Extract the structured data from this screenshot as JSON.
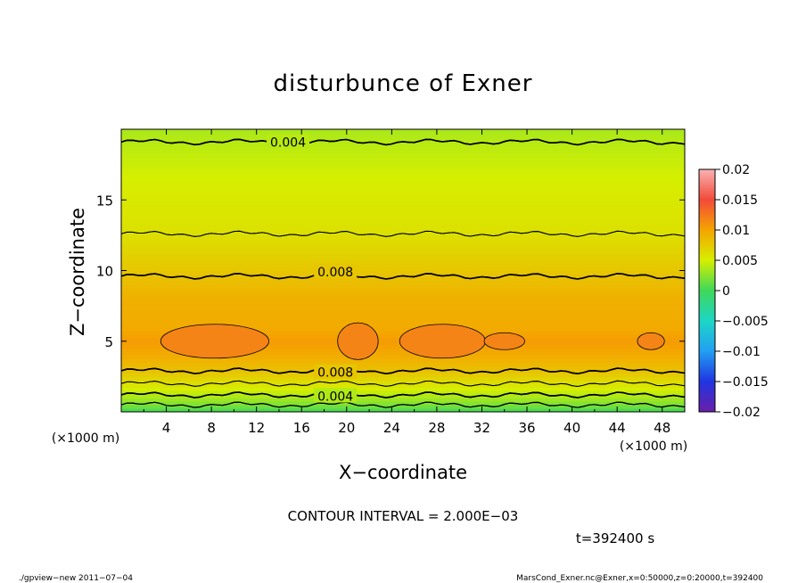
{
  "chart_data": {
    "type": "contour",
    "title": "disturbunce of Exner",
    "xlabel": "X−coordinate",
    "ylabel": "Z−coordinate",
    "x_unit": "(×1000 m)",
    "y_unit": "(×1000 m)",
    "xlim": [
      0,
      50
    ],
    "ylim": [
      0,
      20
    ],
    "x_ticks": [
      4,
      8,
      12,
      16,
      20,
      24,
      28,
      32,
      36,
      40,
      44,
      48
    ],
    "y_ticks": [
      5,
      10,
      15
    ],
    "contour_interval_text": "CONTOUR INTERVAL = 2.000E−03",
    "time_text": "t=392400 s",
    "footer_left": "./gpview−new   2011−07−04",
    "footer_right": "MarsCond_Exner.nc@Exner,x=0:50000,z=0:20000,t=392400",
    "colorbar": {
      "levels": [
        -0.02,
        -0.015,
        -0.01,
        -0.005,
        0,
        0.005,
        0.01,
        0.015,
        0.02
      ],
      "labels": [
        "0.02",
        "0.015",
        "0.01",
        "0.005",
        "0",
        "−0.005",
        "−0.01",
        "−0.015",
        "−0.02"
      ]
    },
    "contour_labels": [
      {
        "text": "0.004",
        "x": 14.8,
        "z": 19.1
      },
      {
        "text": "0.008",
        "x": 19.0,
        "z": 9.9
      },
      {
        "text": "0.008",
        "x": 19.0,
        "z": 2.8
      },
      {
        "text": "0.004",
        "x": 19.0,
        "z": 1.1
      }
    ],
    "profile_z_value": [
      [
        0.0,
        0.0
      ],
      [
        0.5,
        0.002
      ],
      [
        1.2,
        0.004
      ],
      [
        2.0,
        0.006
      ],
      [
        2.9,
        0.008
      ],
      [
        4.0,
        0.0095
      ],
      [
        5.0,
        0.0105
      ],
      [
        6.0,
        0.0095
      ],
      [
        8.0,
        0.0092
      ],
      [
        9.6,
        0.008
      ],
      [
        12.6,
        0.006
      ],
      [
        16.0,
        0.0052
      ],
      [
        19.1,
        0.004
      ],
      [
        20.0,
        0.0035
      ]
    ],
    "high_regions": [
      {
        "x": 8.3,
        "z": 5.0,
        "dx": 4.8,
        "dz": 1.2
      },
      {
        "x": 21.0,
        "z": 5.0,
        "dx": 1.8,
        "dz": 1.3
      },
      {
        "x": 28.5,
        "z": 5.0,
        "dx": 3.8,
        "dz": 1.2
      },
      {
        "x": 34.0,
        "z": 5.0,
        "dx": 1.8,
        "dz": 0.6
      },
      {
        "x": 47.0,
        "z": 5.0,
        "dx": 1.2,
        "dz": 0.6
      }
    ]
  }
}
